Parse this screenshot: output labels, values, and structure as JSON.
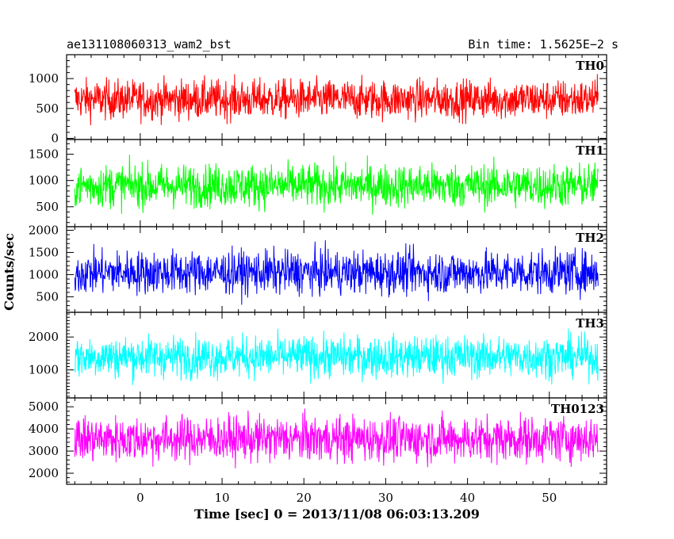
{
  "header": {
    "left_title": "ae131108060313_wam2_bst",
    "right_title": "Bin time: 1.5625E−2 s"
  },
  "chart_data": {
    "type": "line",
    "title": "ae131108060313_wam2_bst",
    "subtitle": "Bin time: 1.5625E−2 s",
    "xlabel": "Time [sec] 0 = 2013/11/08 06:03:13.209",
    "ylabel": "Counts/sec",
    "xlim": [
      -9,
      57
    ],
    "x_range_of_data": [
      -8,
      56
    ],
    "x_ticks": [
      0,
      10,
      20,
      30,
      40,
      50
    ],
    "grid": false,
    "panels": [
      {
        "name": "TH0",
        "color": "#ff0000",
        "ylim": [
          -20,
          1400
        ],
        "y_ticks": [
          0,
          500,
          1000
        ],
        "base": 650,
        "spread": 420,
        "min": 50,
        "max": 1380
      },
      {
        "name": "TH1",
        "color": "#00ff00",
        "ylim": [
          120,
          1780
        ],
        "y_ticks": [
          500,
          1000,
          1500
        ],
        "base": 900,
        "spread": 520,
        "min": 150,
        "max": 1780
      },
      {
        "name": "TH2",
        "color": "#0000ff",
        "ylim": [
          150,
          2080
        ],
        "y_ticks": [
          500,
          1000,
          1500,
          2000
        ],
        "base": 1050,
        "spread": 620,
        "min": 200,
        "max": 2080
      },
      {
        "name": "TH3",
        "color": "#00ffff",
        "ylim": [
          150,
          2750
        ],
        "y_ticks": [
          1000,
          2000
        ],
        "base": 1400,
        "spread": 800,
        "min": 300,
        "max": 2750
      },
      {
        "name": "TH0123",
        "color": "#ff00ff",
        "ylim": [
          1500,
          5400
        ],
        "y_ticks": [
          2000,
          3000,
          4000,
          5000
        ],
        "base": 3550,
        "spread": 1300,
        "min": 1500,
        "max": 5400
      }
    ]
  }
}
